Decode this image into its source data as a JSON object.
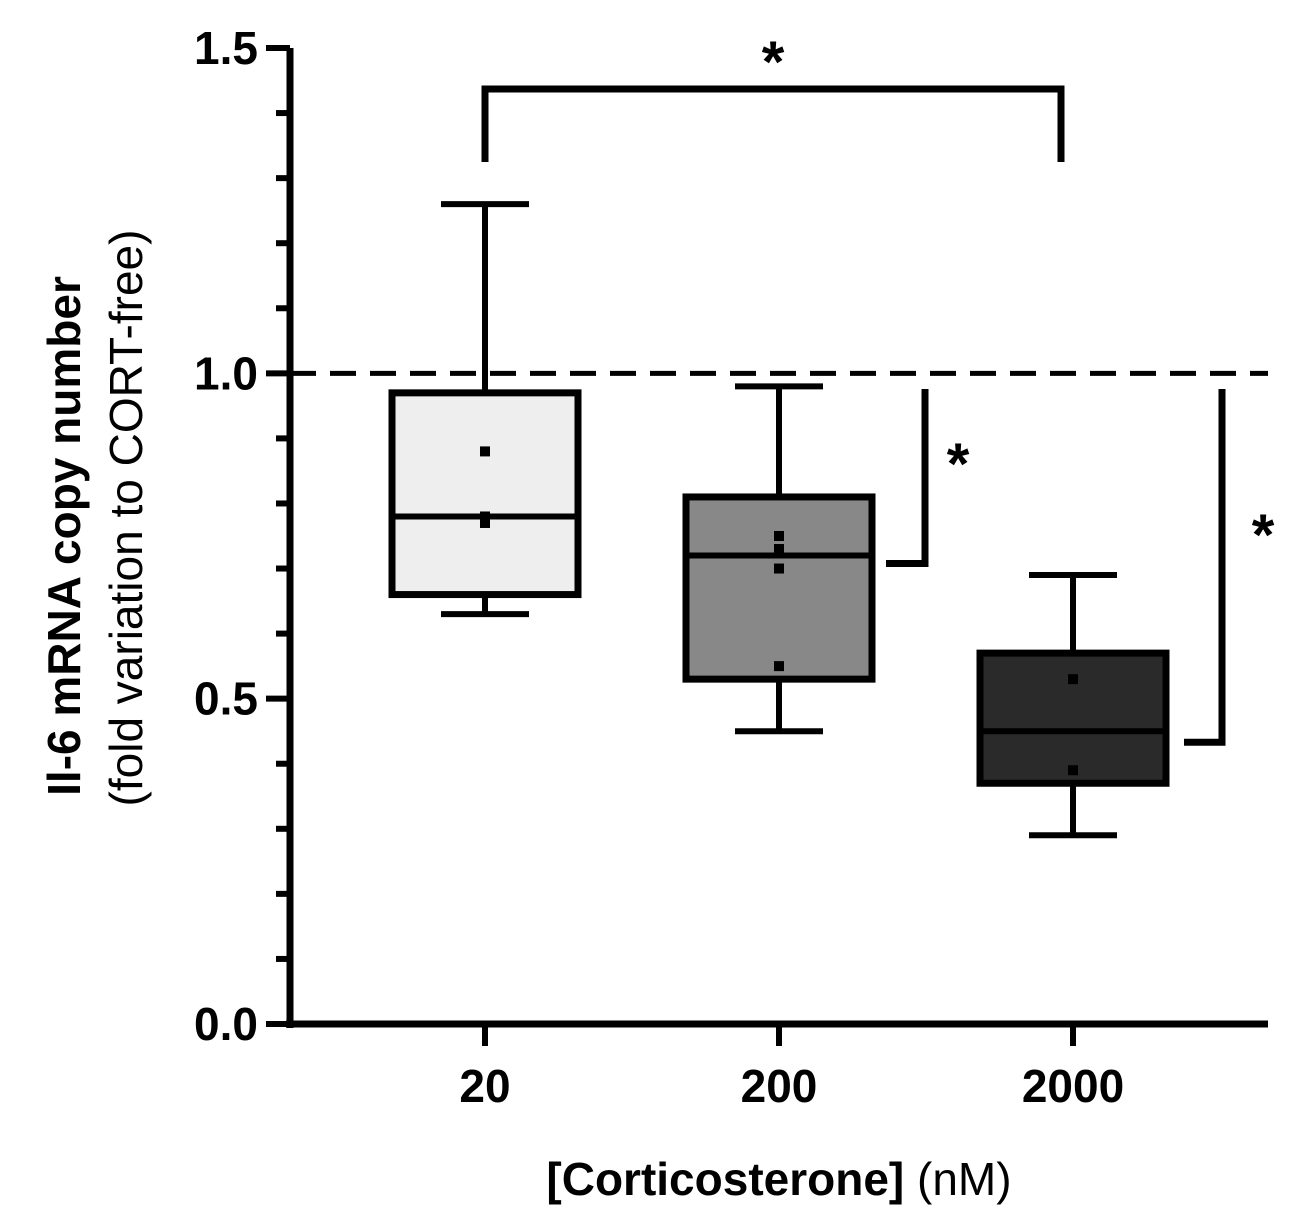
{
  "chart_data": {
    "type": "box",
    "ylabel_main": "Il-6 mRNA copy number",
    "ylabel_sub": "(fold variation to CORT-free)",
    "xlabel_main": "[Corticosterone]",
    "xlabel_unit": "(nM)",
    "ylim": [
      0,
      1.5
    ],
    "yticks": [
      "0.0",
      "0.5",
      "1.0",
      "1.5"
    ],
    "categories": [
      "20",
      "200",
      "2000"
    ],
    "reference_line": 1.0,
    "boxes": [
      {
        "category": "20",
        "min": 0.63,
        "q1": 0.66,
        "median": 0.78,
        "q3": 0.97,
        "max": 1.26,
        "fill": "#eeeeee",
        "points": [
          0.88,
          0.78,
          0.77
        ]
      },
      {
        "category": "200",
        "min": 0.45,
        "q1": 0.53,
        "median": 0.72,
        "q3": 0.81,
        "max": 0.98,
        "fill": "#888888",
        "points": [
          0.75,
          0.73,
          0.7,
          0.55
        ]
      },
      {
        "category": "2000",
        "min": 0.29,
        "q1": 0.37,
        "median": 0.45,
        "q3": 0.57,
        "max": 0.69,
        "fill": "#2a2a2a",
        "points": [
          0.53,
          0.39
        ]
      }
    ],
    "significance": [
      {
        "type": "horizontal",
        "from": "20",
        "to": "2000",
        "label": "*"
      },
      {
        "type": "vertical",
        "category": "200",
        "label": "*"
      },
      {
        "type": "vertical",
        "category": "2000",
        "label": "*"
      }
    ]
  }
}
